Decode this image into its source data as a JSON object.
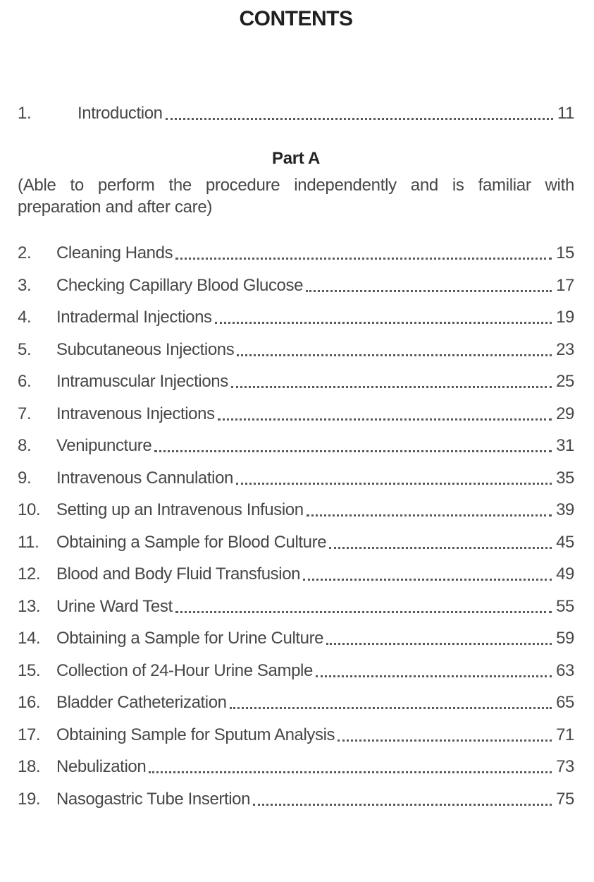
{
  "page": {
    "title": "CONTENTS",
    "intro_entry": {
      "number": "1.",
      "title": "Introduction",
      "page": "11"
    },
    "part_a": {
      "heading": "Part A",
      "description": "(Able to perform the procedure independently and is familiar with preparation and after care)",
      "description_lines": [
        "(Able to perform the procedure independently and is familiar with",
        "preparation and after care)"
      ]
    },
    "entries": [
      {
        "number": "2.",
        "title": "Cleaning Hands",
        "page": "15"
      },
      {
        "number": "3.",
        "title": "Checking Capillary Blood Glucose",
        "page": "17"
      },
      {
        "number": "4.",
        "title": "Intradermal Injections",
        "page": "19"
      },
      {
        "number": "5.",
        "title": "Subcutaneous Injections",
        "page": "23"
      },
      {
        "number": "6.",
        "title": "Intramuscular Injections",
        "page": "25"
      },
      {
        "number": "7.",
        "title": "Intravenous Injections",
        "page": "29"
      },
      {
        "number": "8.",
        "title": "Venipuncture",
        "page": "31"
      },
      {
        "number": "9.",
        "title": "Intravenous Cannulation",
        "page": "35"
      },
      {
        "number": "10.",
        "title": "Setting up an Intravenous Infusion",
        "page": "39"
      },
      {
        "number": "11.",
        "title": "Obtaining a Sample for Blood Culture",
        "page": "45"
      },
      {
        "number": "12.",
        "title": "Blood and Body Fluid Transfusion",
        "page": "49"
      },
      {
        "number": "13.",
        "title": "Urine Ward Test",
        "page": "55"
      },
      {
        "number": "14.",
        "title": "Obtaining a Sample for Urine Culture",
        "page": "59"
      },
      {
        "number": "15.",
        "title": "Collection of 24-Hour Urine Sample",
        "page": "63"
      },
      {
        "number": "16.",
        "title": "Bladder Catheterization",
        "page": "65"
      },
      {
        "number": "17.",
        "title": "Obtaining Sample for Sputum Analysis",
        "page": "71"
      },
      {
        "number": "18.",
        "title": "Nebulization",
        "page": "73"
      },
      {
        "number": "19.",
        "title": "Nasogastric Tube Insertion",
        "page": "75"
      }
    ],
    "colors": {
      "heading_text": "#1f1f1f",
      "body_text": "#474747",
      "leader_dots": "#5a5a5a",
      "background": "#ffffff"
    }
  }
}
